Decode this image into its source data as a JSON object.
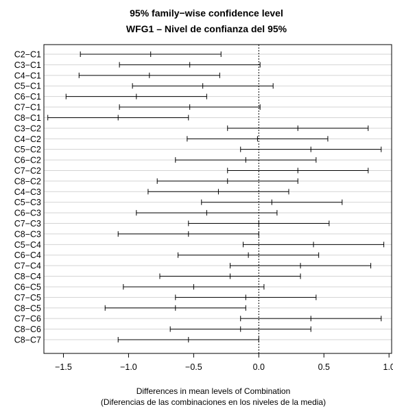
{
  "chart_data": {
    "type": "interval",
    "title": "95% family−wise confidence level",
    "subtitle": "WFG1 – Nivel de confianza del 95%",
    "xlabel": "Differences in mean levels of Combination",
    "xlabel2": "(Diferencias de las combinaciones en los niveles de la media)",
    "xlim": [
      -1.65,
      1.02
    ],
    "xticks": [
      -1.5,
      -1.0,
      -0.5,
      0.0,
      0.5,
      1.0
    ],
    "xtick_labels": [
      "−1.5",
      "−1.0",
      "−0.5",
      "0.0",
      "0.5",
      "1.0"
    ],
    "reference_line": 0.0,
    "grid": true,
    "categories": [
      "C2−C1",
      "C3−C1",
      "C4−C1",
      "C5−C1",
      "C6−C1",
      "C7−C1",
      "C8−C1",
      "C3−C2",
      "C4−C2",
      "C5−C2",
      "C6−C2",
      "C7−C2",
      "C8−C2",
      "C4−C3",
      "C5−C3",
      "C6−C3",
      "C7−C3",
      "C8−C3",
      "C5−C4",
      "C6−C4",
      "C7−C4",
      "C8−C4",
      "C6−C5",
      "C7−C5",
      "C8−C5",
      "C7−C6",
      "C8−C6",
      "C8−C7"
    ],
    "lower": [
      -1.37,
      -1.07,
      -1.38,
      -0.97,
      -1.48,
      -1.07,
      -1.62,
      -0.24,
      -0.55,
      -0.14,
      -0.64,
      -0.24,
      -0.78,
      -0.85,
      -0.44,
      -0.94,
      -0.54,
      -1.08,
      -0.12,
      -0.62,
      -0.22,
      -0.76,
      -1.04,
      -0.64,
      -1.18,
      -0.14,
      -0.68,
      -1.08
    ],
    "estimate": [
      -0.83,
      -0.53,
      -0.84,
      -0.43,
      -0.94,
      -0.53,
      -1.08,
      0.3,
      -0.01,
      0.4,
      -0.1,
      0.3,
      -0.24,
      -0.31,
      0.1,
      -0.4,
      0.0,
      -0.54,
      0.42,
      -0.08,
      0.32,
      -0.22,
      -0.5,
      -0.1,
      -0.64,
      0.4,
      -0.14,
      -0.54
    ],
    "upper": [
      -0.29,
      0.01,
      -0.3,
      0.11,
      -0.4,
      0.01,
      -0.54,
      0.84,
      0.53,
      0.94,
      0.44,
      0.84,
      0.3,
      0.23,
      0.64,
      0.14,
      0.54,
      0.0,
      0.96,
      0.46,
      0.86,
      0.32,
      0.04,
      0.44,
      -0.1,
      0.94,
      0.4,
      0.0
    ]
  }
}
